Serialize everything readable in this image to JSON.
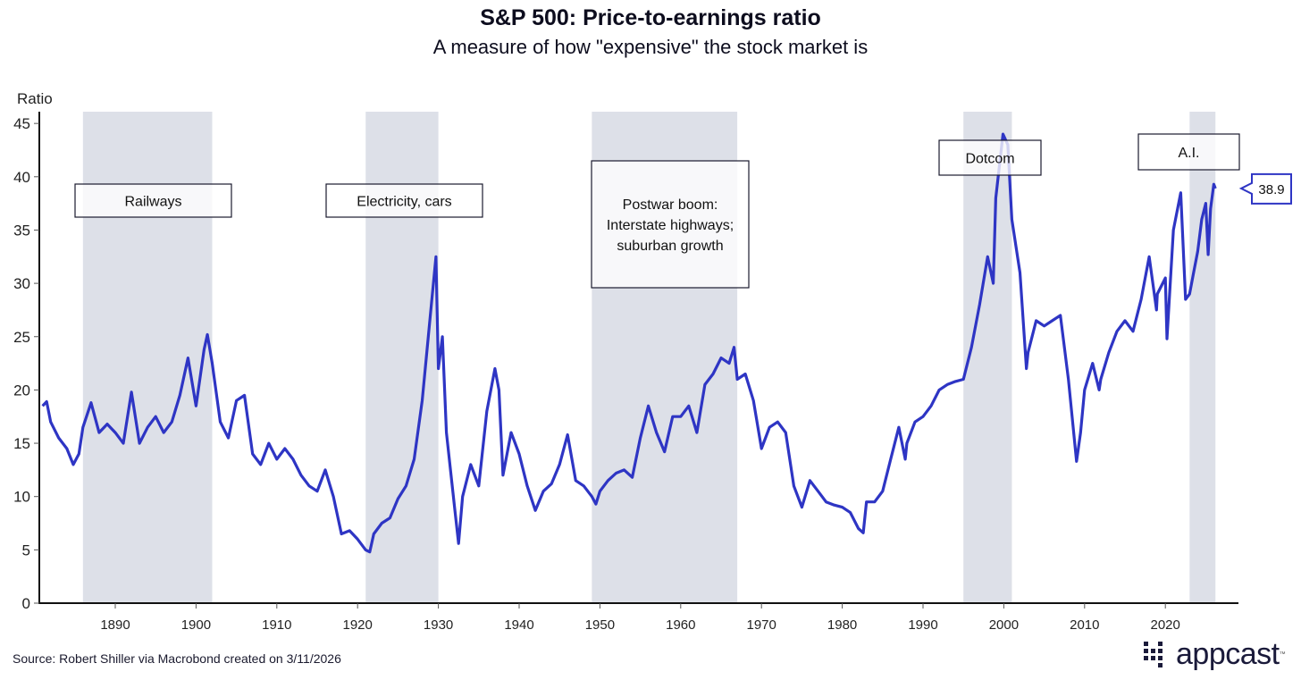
{
  "chart_data": {
    "type": "line",
    "title": "S&P 500: Price-to-earnings ratio",
    "subtitle": "A measure of how \"expensive\" the stock market is",
    "ylabel": "Ratio",
    "xlabel": "",
    "xlim": [
      1880.6,
      2029
    ],
    "ylim": [
      0,
      46
    ],
    "yticks": [
      0,
      5,
      10,
      15,
      20,
      25,
      30,
      35,
      40,
      45
    ],
    "xticks": [
      1890,
      1900,
      1910,
      1920,
      1930,
      1940,
      1950,
      1960,
      1970,
      1980,
      1990,
      2000,
      2010,
      2020
    ],
    "grid": false,
    "series_color": "#2e35c4",
    "band_color": "#dde0e8",
    "bands": [
      {
        "label": "Railways",
        "start": 1886,
        "end": 1902
      },
      {
        "label": "Electricity, cars",
        "start": 1921,
        "end": 1930
      },
      {
        "label": "Postwar boom: Interstate highways; suburban growth",
        "label_lines": [
          "Postwar boom:",
          "Interstate highways;",
          "suburban growth"
        ],
        "start": 1949,
        "end": 1967
      },
      {
        "label": "Dotcom",
        "start": 1995,
        "end": 2001
      },
      {
        "label": "A.I.",
        "start": 2023,
        "end": 2026.2
      }
    ],
    "last_value_label": "38.9",
    "series": [
      {
        "name": "S&P 500 P/E ratio",
        "x": [
          1881,
          1881.5,
          1882,
          1883,
          1884,
          1884.8,
          1885.5,
          1886,
          1887,
          1888,
          1889,
          1890,
          1891,
          1892,
          1893,
          1894,
          1895,
          1896,
          1897,
          1898,
          1899,
          1900,
          1901,
          1901.4,
          1902,
          1903,
          1904,
          1905,
          1906,
          1907,
          1908,
          1909,
          1910,
          1911,
          1912,
          1913,
          1914,
          1915,
          1916,
          1917,
          1918,
          1919,
          1920,
          1921,
          1921.5,
          1922,
          1923,
          1924,
          1925,
          1926,
          1927,
          1928,
          1929,
          1929.7,
          1930,
          1930.5,
          1931,
          1932,
          1932.5,
          1933,
          1934,
          1935,
          1936,
          1937,
          1937.5,
          1938,
          1939,
          1940,
          1941,
          1942,
          1943,
          1944,
          1945,
          1946,
          1947,
          1948,
          1949,
          1949.5,
          1950,
          1951,
          1952,
          1953,
          1954,
          1955,
          1956,
          1957,
          1958,
          1959,
          1960,
          1961,
          1962,
          1963,
          1964,
          1965,
          1966,
          1966.6,
          1967,
          1968,
          1969,
          1970,
          1971,
          1972,
          1973,
          1974,
          1975,
          1976,
          1977,
          1978,
          1979,
          1980,
          1981,
          1982,
          1982.6,
          1983,
          1984,
          1985,
          1986,
          1987,
          1987.8,
          1988,
          1989,
          1990,
          1991,
          1992,
          1993,
          1994,
          1995,
          1996,
          1997,
          1998,
          1998.7,
          1999,
          1999.9,
          2000.5,
          2001,
          2002,
          2002.8,
          2003,
          2004,
          2005,
          2006,
          2007,
          2008,
          2009,
          2009.5,
          2010,
          2011,
          2011.8,
          2012,
          2013,
          2014,
          2015,
          2016,
          2017,
          2018,
          2018.9,
          2019,
          2020,
          2020.2,
          2021,
          2021.9,
          2022.5,
          2023,
          2023.5,
          2024,
          2024.5,
          2025,
          2025.3,
          2025.6,
          2026,
          2026.2
        ],
        "values": [
          18.5,
          18.9,
          17,
          15.5,
          14.5,
          13,
          14,
          16.5,
          18.8,
          16,
          16.8,
          16,
          15,
          19.8,
          15,
          16.5,
          17.5,
          16,
          17,
          19.5,
          23,
          18.5,
          23.8,
          25.2,
          22.5,
          17,
          15.5,
          19,
          19.5,
          14,
          13,
          15,
          13.5,
          14.5,
          13.5,
          12,
          11,
          10.5,
          12.5,
          10,
          6.5,
          6.8,
          6,
          5,
          4.8,
          6.5,
          7.5,
          8,
          9.8,
          11,
          13.5,
          19,
          27,
          32.5,
          22,
          25,
          16,
          9,
          5.6,
          10,
          13,
          11,
          18,
          22,
          20,
          12,
          16,
          14,
          11,
          8.7,
          10.5,
          11.2,
          13,
          15.8,
          11.5,
          11,
          10,
          9.3,
          10.5,
          11.5,
          12.2,
          12.5,
          11.8,
          15.5,
          18.5,
          16,
          14.2,
          17.5,
          17.5,
          18.5,
          16,
          20.5,
          21.5,
          23,
          22.5,
          24,
          21,
          21.5,
          19,
          14.5,
          16.5,
          17,
          16,
          11,
          9,
          11.5,
          10.5,
          9.5,
          9.2,
          9,
          8.5,
          7,
          6.6,
          9.5,
          9.5,
          10.5,
          13.5,
          16.5,
          13.5,
          15,
          17,
          17.5,
          18.5,
          20,
          20.5,
          20.8,
          21,
          24,
          28,
          32.5,
          30,
          38,
          44,
          43,
          36,
          31,
          22,
          23.5,
          26.5,
          26,
          26.5,
          27,
          21,
          13.3,
          16,
          20,
          22.5,
          20,
          21,
          23.5,
          25.5,
          26.5,
          25.5,
          28.5,
          32.5,
          27.5,
          29,
          30.5,
          24.8,
          35,
          38.5,
          28.5,
          29,
          31,
          33,
          36,
          37.5,
          32.7,
          37,
          39.3,
          38.9
        ]
      }
    ]
  },
  "source": "Source: Robert Shiller via Macrobond created on 3/11/2026",
  "logo": {
    "text": "appcast",
    "trademark": "™"
  }
}
